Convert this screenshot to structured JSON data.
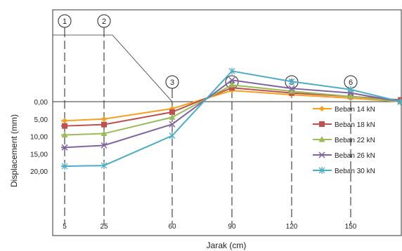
{
  "chart_data": {
    "type": "line",
    "xlabel": "Jarak (cm)",
    "ylabel": "Displacement (mm)",
    "x_ticks": [
      "5",
      "25",
      "60",
      "90",
      "120",
      "150"
    ],
    "y_ticks": [
      "0,00",
      "5,00",
      "10,00",
      "15,00",
      "20,00"
    ],
    "y_reversed": true,
    "grid": false,
    "legend_position": "right",
    "markers": [
      {
        "label": "1",
        "x": 5
      },
      {
        "label": "2",
        "x": 25
      },
      {
        "label": "3",
        "x": 60
      },
      {
        "label": "4",
        "x": 90
      },
      {
        "label": "5",
        "x": 120
      },
      {
        "label": "6",
        "x": 150
      }
    ],
    "x": [
      0,
      5,
      25,
      60,
      90,
      120,
      150,
      180
    ],
    "series": [
      {
        "name": "Beban 14 kN",
        "color": "#F7A01D",
        "marker": "diamond",
        "values": [
          5.5,
          5.5,
          5.0,
          2.0,
          -3.2,
          -2.0,
          -1.0,
          0.0
        ]
      },
      {
        "name": "Beban 18 kN",
        "color": "#C0504D",
        "marker": "square",
        "values": [
          7.0,
          7.0,
          6.6,
          3.0,
          -4.0,
          -2.5,
          -1.5,
          -0.5
        ]
      },
      {
        "name": "Beban 22 kN",
        "color": "#9BBB59",
        "marker": "triangle",
        "values": [
          9.6,
          9.6,
          9.2,
          4.5,
          -4.8,
          -3.0,
          -1.5,
          0.0
        ]
      },
      {
        "name": "Beban 26 kN",
        "color": "#8064A2",
        "marker": "x",
        "values": [
          13.2,
          13.2,
          12.6,
          6.5,
          -6.2,
          -3.8,
          -2.5,
          0.0
        ]
      },
      {
        "name": "Beban 30 kN",
        "color": "#4BACC6",
        "marker": "asterisk",
        "values": [
          18.6,
          18.6,
          18.4,
          9.8,
          -8.8,
          -5.8,
          -3.5,
          0.0
        ]
      }
    ]
  }
}
